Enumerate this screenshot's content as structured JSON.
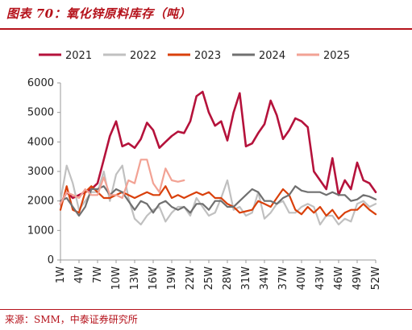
{
  "header": {
    "title": "图表 70：氧化锌原料库存（吨）"
  },
  "footer": {
    "source": "来源：SMM，中泰证券研究所"
  },
  "chart_data": {
    "type": "line",
    "title": "",
    "xlabel": "",
    "ylabel": "",
    "ylim": [
      0,
      6000
    ],
    "yticks": [
      0,
      1000,
      2000,
      3000,
      4000,
      5000,
      6000
    ],
    "xtick_labels": [
      "1W",
      "4W",
      "7W",
      "10W",
      "13W",
      "16W",
      "19W",
      "22W",
      "25W",
      "28W",
      "31W",
      "34W",
      "37W",
      "40W",
      "43W",
      "46W",
      "49W",
      "52W"
    ],
    "grid": false,
    "legend_position": "top",
    "series": [
      {
        "name": "2021",
        "color": "#b5123b",
        "values": [
          1900,
          2300,
          2100,
          2200,
          2300,
          2400,
          2600,
          3400,
          4200,
          4700,
          3850,
          3950,
          3800,
          4100,
          4650,
          4400,
          3800,
          4000,
          4200,
          4350,
          4300,
          4700,
          5550,
          5700,
          5000,
          4550,
          4700,
          4050,
          5000,
          5650,
          3850,
          3950,
          4300,
          4600,
          5400,
          4900,
          4100,
          4400,
          4800,
          4700,
          4500,
          3000,
          2700,
          2400,
          3450,
          2200,
          2700,
          2400,
          3300,
          2700,
          2600,
          2300
        ]
      },
      {
        "name": "2022",
        "color": "#c0c0c0",
        "values": [
          2000,
          3200,
          2600,
          1700,
          2000,
          2300,
          2300,
          3000,
          2000,
          2900,
          3200,
          2100,
          1400,
          1200,
          1500,
          1700,
          1800,
          1300,
          1600,
          1800,
          1800,
          1500,
          2100,
          1800,
          1500,
          1600,
          2100,
          2700,
          1700,
          1800,
          1500,
          1600,
          2300,
          1400,
          1600,
          1900,
          2000,
          1600,
          1600,
          1800,
          1900,
          1800,
          1200,
          1500,
          1500,
          1200,
          1400,
          1300,
          1900,
          2000,
          1800,
          1900
        ]
      },
      {
        "name": "2023",
        "color": "#d9400b",
        "values": [
          1700,
          2500,
          1700,
          1600,
          2300,
          2500,
          2300,
          2100,
          2100,
          2200,
          2300,
          2200,
          2100,
          2200,
          2300,
          2200,
          2200,
          2500,
          2100,
          2200,
          2100,
          2200,
          2300,
          2200,
          2300,
          2100,
          2100,
          1900,
          1800,
          1600,
          1650,
          1700,
          2000,
          1900,
          1800,
          2100,
          2400,
          2200,
          1700,
          1550,
          1800,
          1600,
          1800,
          1500,
          1700,
          1400,
          1600,
          1700,
          1700,
          1900,
          1700,
          1550
        ]
      },
      {
        "name": "2024",
        "color": "#707070",
        "values": [
          2000,
          2100,
          1800,
          1500,
          1800,
          2400,
          2400,
          2500,
          2200,
          2400,
          2300,
          2000,
          1700,
          2000,
          1900,
          1600,
          1900,
          2000,
          1800,
          1700,
          1800,
          1600,
          1900,
          1900,
          1700,
          2000,
          2000,
          1800,
          1800,
          2000,
          2200,
          2400,
          2300,
          2000,
          2000,
          1900,
          2100,
          2200,
          2500,
          2350,
          2300,
          2300,
          2300,
          2200,
          2300,
          2200,
          2200,
          2000,
          2050,
          2200,
          2150,
          2050
        ]
      },
      {
        "name": "2025",
        "color": "#f2a294",
        "values": [
          1900,
          2300,
          2200,
          2100,
          2400,
          2200,
          2200,
          2800,
          2200,
          2200,
          2100,
          2700,
          2600,
          3400,
          3400,
          2600,
          2300,
          3100,
          2700,
          2650,
          2700
        ]
      }
    ]
  }
}
